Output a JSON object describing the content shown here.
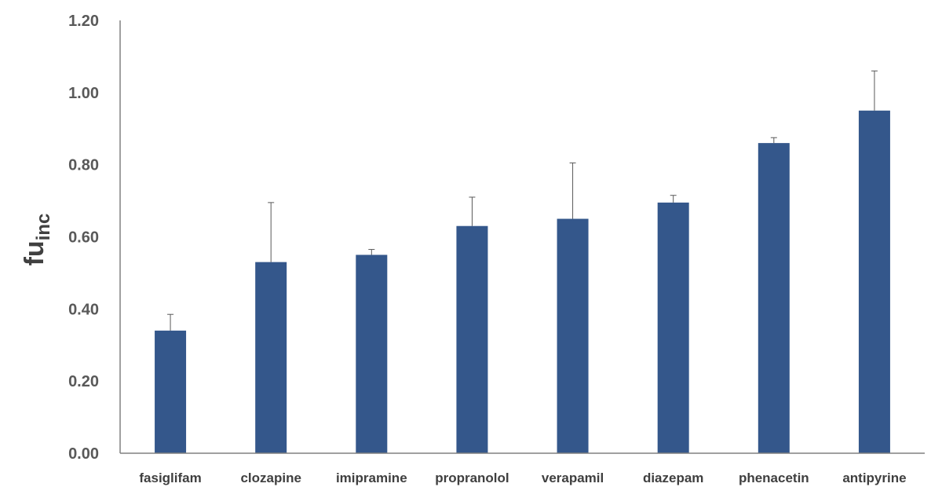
{
  "chart_data": {
    "type": "bar",
    "categories": [
      "fasiglifam",
      "clozapine",
      "imipramine",
      "propranolol",
      "verapamil",
      "diazepam",
      "phenacetin",
      "antipyrine"
    ],
    "values": [
      0.34,
      0.53,
      0.55,
      0.63,
      0.65,
      0.695,
      0.86,
      0.95
    ],
    "error_upper": [
      0.045,
      0.165,
      0.015,
      0.08,
      0.155,
      0.02,
      0.015,
      0.11
    ],
    "ylabel": "fu",
    "ylabel_sub": "inc",
    "ylim": [
      0,
      1.2
    ],
    "yticks": [
      "0.00",
      "0.20",
      "0.40",
      "0.60",
      "0.80",
      "1.00",
      "1.20"
    ],
    "ytick_values": [
      0,
      0.2,
      0.4,
      0.6,
      0.8,
      1.0,
      1.2
    ],
    "grid": false,
    "legend": "none",
    "bar_color": "#34578B",
    "axis_color": "#808080"
  }
}
